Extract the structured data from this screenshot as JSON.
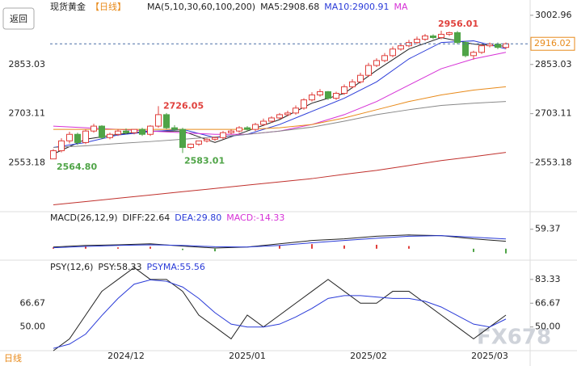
{
  "back_button": "返回",
  "footer_label": "日线",
  "watermark": "FX678",
  "chart_data": [
    {
      "type": "candlestick",
      "title": "现货黄金",
      "period": "【日线】",
      "legend": [
        {
          "text": "MA(5,10,30,60,100,200)",
          "color": "#222222"
        },
        {
          "text": "MA5:2908.68",
          "color": "#222222"
        },
        {
          "text": "MA10:2900.91",
          "color": "#2a3bd8"
        },
        {
          "text": "MA",
          "color": "#d631d6"
        }
      ],
      "categories": [
        null,
        null,
        null,
        null,
        null,
        null,
        null,
        null,
        null,
        "2024/12",
        null,
        null,
        null,
        null,
        null,
        null,
        null,
        null,
        null,
        null,
        null,
        null,
        null,
        null,
        "2025/01",
        null,
        null,
        null,
        null,
        null,
        null,
        null,
        null,
        null,
        null,
        null,
        null,
        null,
        null,
        "2025/02",
        null,
        null,
        null,
        null,
        null,
        null,
        null,
        null,
        null,
        null,
        null,
        null,
        null,
        null,
        "2025/03",
        null,
        null
      ],
      "open": [
        2565,
        2590,
        2620,
        2640,
        2615,
        2650,
        2665,
        2630,
        2640,
        2650,
        2645,
        2655,
        2640,
        2665,
        2700,
        2660,
        2655,
        2600,
        2610,
        2620,
        2625,
        2630,
        2645,
        2650,
        2660,
        2655,
        2670,
        2680,
        2690,
        2700,
        2705,
        2720,
        2745,
        2760,
        2770,
        2750,
        2765,
        2785,
        2800,
        2820,
        2850,
        2865,
        2880,
        2900,
        2910,
        2920,
        2930,
        2940,
        2935,
        2945,
        2950,
        2920,
        2880,
        2890,
        2910,
        2915,
        2905
      ],
      "high": [
        2595,
        2628,
        2648,
        2645,
        2655,
        2672,
        2668,
        2645,
        2655,
        2658,
        2652,
        2660,
        2668,
        2726.05,
        2705,
        2668,
        2660,
        2612,
        2618,
        2628,
        2632,
        2650,
        2655,
        2665,
        2665,
        2675,
        2688,
        2695,
        2705,
        2712,
        2728,
        2750,
        2768,
        2778,
        2772,
        2770,
        2792,
        2808,
        2828,
        2858,
        2872,
        2888,
        2908,
        2918,
        2928,
        2938,
        2946,
        2945,
        2956.01,
        2953,
        2955,
        2925,
        2895,
        2915,
        2920,
        2920,
        2920
      ],
      "low": [
        2564.8,
        2585,
        2612,
        2608,
        2610,
        2645,
        2625,
        2625,
        2635,
        2640,
        2640,
        2635,
        2635,
        2660,
        2655,
        2650,
        2583.01,
        2595,
        2605,
        2615,
        2620,
        2625,
        2640,
        2645,
        2650,
        2650,
        2665,
        2675,
        2685,
        2695,
        2700,
        2715,
        2740,
        2755,
        2745,
        2745,
        2760,
        2780,
        2795,
        2815,
        2845,
        2860,
        2875,
        2895,
        2905,
        2915,
        2925,
        2930,
        2930,
        2940,
        2915,
        2875,
        2868,
        2885,
        2905,
        2900,
        2900
      ],
      "close": [
        2590,
        2620,
        2640,
        2615,
        2650,
        2665,
        2630,
        2640,
        2650,
        2645,
        2655,
        2640,
        2665,
        2700,
        2660,
        2655,
        2600,
        2610,
        2620,
        2625,
        2630,
        2645,
        2650,
        2660,
        2655,
        2670,
        2680,
        2690,
        2700,
        2705,
        2720,
        2745,
        2760,
        2770,
        2750,
        2765,
        2785,
        2800,
        2820,
        2850,
        2865,
        2880,
        2900,
        2910,
        2920,
        2930,
        2940,
        2935,
        2945,
        2950,
        2920,
        2880,
        2890,
        2910,
        2915,
        2905,
        2916
      ],
      "up_color": "#e0403c",
      "down_color": "#4fa447",
      "ylim": [
        2414,
        3020
      ],
      "yticks": [
        3002.96,
        2853.03,
        2703.11,
        2553.18
      ],
      "annotations": [
        {
          "value": 2956.01,
          "label": "2956.01",
          "color": "#e0403c"
        },
        {
          "value": 2726.05,
          "label": "2726.05",
          "color": "#e0403c"
        },
        {
          "value": 2583.01,
          "label": "2583.01",
          "color": "#4fa447"
        },
        {
          "value": 2564.8,
          "label": "2564.80",
          "color": "#4fa447"
        }
      ],
      "last_price": {
        "value": 2916.02,
        "label": "2916.02"
      },
      "x": [
        0,
        4,
        8,
        12,
        16,
        20,
        24,
        28,
        32,
        36,
        40,
        44,
        48,
        52,
        56
      ],
      "series": [
        {
          "color": "#222222",
          "values": [
            2580,
            2625,
            2640,
            2650,
            2650,
            2615,
            2650,
            2685,
            2735,
            2765,
            2835,
            2900,
            2935,
            2915,
            2908.68
          ]
        },
        {
          "color": "#2a3bd8",
          "values": [
            2600,
            2615,
            2638,
            2648,
            2655,
            2630,
            2640,
            2670,
            2710,
            2750,
            2800,
            2870,
            2920,
            2925,
            2900.91
          ]
        },
        {
          "color": "#d631d6",
          "values": [
            2665,
            2660,
            2655,
            2650,
            2645,
            2640,
            2640,
            2650,
            2670,
            2700,
            2740,
            2790,
            2840,
            2870,
            2890
          ]
        },
        {
          "color": "#e88a1a",
          "values": [
            2655,
            2655,
            2655,
            2655,
            2655,
            2655,
            2655,
            2660,
            2670,
            2690,
            2715,
            2740,
            2760,
            2775,
            2785
          ]
        },
        {
          "color": "#888888",
          "values": [
            2600,
            2605,
            2612,
            2618,
            2625,
            2632,
            2640,
            2650,
            2662,
            2680,
            2700,
            2715,
            2728,
            2735,
            2740
          ]
        },
        {
          "color": "#c0302c",
          "values": [
            2425,
            2435,
            2445,
            2455,
            2465,
            2475,
            2485,
            2495,
            2505,
            2518,
            2530,
            2545,
            2560,
            2572,
            2585
          ]
        }
      ]
    },
    {
      "type": "macd",
      "legend": [
        {
          "text": "MACD(26,12,9)",
          "color": "#222222"
        },
        {
          "text": "DIFF:22.64",
          "color": "#222222"
        },
        {
          "text": "DEA:29.80",
          "color": "#2a3bd8"
        },
        {
          "text": "MACD:-14.33",
          "color": "#d631d6"
        }
      ],
      "ylim": [
        -30,
        108
      ],
      "yticks": [
        59.37
      ],
      "x": [
        0,
        4,
        8,
        12,
        16,
        20,
        24,
        28,
        32,
        36,
        40,
        44,
        48,
        52,
        56
      ],
      "series": [
        {
          "color": "#222222",
          "values": [
            5,
            10,
            12,
            15,
            8,
            2,
            5,
            15,
            25,
            30,
            38,
            42,
            40,
            30,
            22.64
          ]
        },
        {
          "color": "#2a3bd8",
          "values": [
            3,
            7,
            10,
            12,
            10,
            6,
            5,
            10,
            18,
            25,
            32,
            38,
            40,
            35,
            29.8
          ]
        },
        {
          "kind": "bar",
          "up_color": "#e0403c",
          "down_color": "#4fa447",
          "values": [
            4,
            6,
            4,
            6,
            -4,
            -8,
            0,
            10,
            14,
            10,
            12,
            8,
            0,
            -10,
            -14.33
          ]
        }
      ]
    },
    {
      "type": "psy",
      "legend": [
        {
          "text": "PSY(12,6)",
          "color": "#222222"
        },
        {
          "text": "PSY:58.33",
          "color": "#222222"
        },
        {
          "text": "PSYMA:55.56",
          "color": "#2a3bd8"
        }
      ],
      "ylim": [
        30,
        94
      ],
      "yticks": [
        83.33,
        66.67,
        {
          "value": 50,
          "label": "50.00"
        }
      ],
      "x": [
        0,
        2,
        4,
        6,
        8,
        10,
        12,
        14,
        16,
        18,
        20,
        22,
        24,
        26,
        28,
        30,
        32,
        34,
        36,
        38,
        40,
        42,
        44,
        46,
        48,
        50,
        52,
        54,
        56
      ],
      "series": [
        {
          "color": "#222222",
          "values": [
            33.33,
            41.67,
            58.33,
            75,
            83.33,
            91.67,
            83.33,
            83.33,
            75,
            58.33,
            50,
            41.67,
            58.33,
            50,
            58.33,
            66.67,
            75,
            83.33,
            75,
            66.67,
            66.67,
            75,
            75,
            66.67,
            58.33,
            50,
            41.67,
            50,
            58.33
          ]
        },
        {
          "color": "#2a3bd8",
          "values": [
            35,
            38,
            45,
            58,
            70,
            80,
            83,
            82,
            78,
            70,
            60,
            52,
            50,
            50,
            52,
            57,
            63,
            70,
            72,
            72,
            71,
            70,
            70,
            68,
            64,
            58,
            52,
            50,
            55.56
          ]
        }
      ]
    }
  ]
}
